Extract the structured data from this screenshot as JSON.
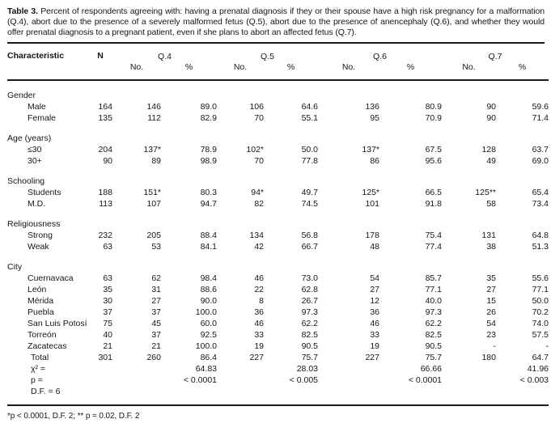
{
  "caption": {
    "label": "Table 3.",
    "text": " Percent of respondents agreeing with: having a prenatal diagnosis if they or their spouse have a high risk pregnancy for a malformation (Q.4), abort due to the presence of a severely malformed fetus (Q.5), abort due to the presence of anencephaly (Q.6), and whether they would offer prenatal diagnosis to a pregnant patient, even if she plans to abort an affected fetus (Q.7)."
  },
  "table": {
    "col_headers": {
      "characteristic": "Characteristic",
      "n": "N",
      "groups": [
        "Q.4",
        "Q.5",
        "Q.6",
        "Q.7"
      ],
      "sub": [
        "No.",
        "%"
      ]
    },
    "sections": [
      {
        "label": "Gender",
        "rows": [
          {
            "label": "Male",
            "values": [
              "164",
              "146",
              "89.0",
              "106",
              "64.6",
              "136",
              "80.9",
              "90",
              "59.6"
            ]
          },
          {
            "label": "Female",
            "values": [
              "135",
              "112",
              "82.9",
              "70",
              "55.1",
              "95",
              "70.9",
              "90",
              "71.4"
            ]
          }
        ]
      },
      {
        "label": "Age (years)",
        "rows": [
          {
            "label": "≤30",
            "values": [
              "204",
              "137*",
              "78.9",
              "102*",
              "50.0",
              "137*",
              "67.5",
              "128",
              "63.7"
            ]
          },
          {
            "label": "30+",
            "values": [
              "90",
              "89",
              "98.9",
              "70",
              "77.8",
              "86",
              "95.6",
              "49",
              "69.0"
            ]
          }
        ]
      },
      {
        "label": "Schooling",
        "rows": [
          {
            "label": "Students",
            "values": [
              "188",
              "151*",
              "80.3",
              "94*",
              "49.7",
              "125*",
              "66.5",
              "125**",
              "65.4"
            ]
          },
          {
            "label": "M.D.",
            "values": [
              "113",
              "107",
              "94.7",
              "82",
              "74.5",
              "101",
              "91.8",
              "58",
              "73.4"
            ]
          }
        ]
      },
      {
        "label": "Religiousness",
        "rows": [
          {
            "label": "Strong",
            "values": [
              "232",
              "205",
              "88.4",
              "134",
              "56.8",
              "178",
              "75.4",
              "131",
              "64.8"
            ]
          },
          {
            "label": "Weak",
            "values": [
              "63",
              "53",
              "84.1",
              "42",
              "66.7",
              "48",
              "77.4",
              "38",
              "51.3"
            ]
          }
        ]
      },
      {
        "label": "City",
        "rows": [
          {
            "label": "Cuernavaca",
            "values": [
              "63",
              "62",
              "98.4",
              "46",
              "73.0",
              "54",
              "85.7",
              "35",
              "55.6"
            ]
          },
          {
            "label": "León",
            "values": [
              "35",
              "31",
              "88.6",
              "22",
              "62.8",
              "27",
              "77.1",
              "27",
              "77.1"
            ]
          },
          {
            "label": "Mérida",
            "values": [
              "30",
              "27",
              "90.0",
              "8",
              "26.7",
              "12",
              "40.0",
              "15",
              "50.0"
            ]
          },
          {
            "label": "Puebla",
            "values": [
              "37",
              "37",
              "100.0",
              "36",
              "97.3",
              "36",
              "97.3",
              "26",
              "70.2"
            ]
          },
          {
            "label": "San Luis Potosí",
            "values": [
              "75",
              "45",
              "60.0",
              "46",
              "62.2",
              "46",
              "62.2",
              "54",
              "74.0"
            ]
          },
          {
            "label": "Torreón",
            "values": [
              "40",
              "37",
              "92.5",
              "33",
              "82.5",
              "33",
              "82.5",
              "23",
              "57.5"
            ]
          },
          {
            "label": "Zacatecas",
            "values": [
              "21",
              "21",
              "100.0",
              "19",
              "90.5",
              "19",
              "90.5",
              "-",
              "-"
            ]
          }
        ]
      }
    ],
    "total_row": {
      "label": "Total",
      "values": [
        "301",
        "260",
        "86.4",
        "227",
        "75.7",
        "227",
        "75.7",
        "180",
        "64.7"
      ]
    },
    "stats": {
      "chi_label": "χ² =",
      "chi_values": [
        "64.83",
        "28.03",
        "66.66",
        "41.96"
      ],
      "p_label": "p =",
      "p_values": [
        "< 0.0001",
        "< 0.005",
        "< 0.0001",
        "< 0.003"
      ],
      "df_label": "D.F. = 6"
    }
  },
  "footnote": "*p < 0.0001, D.F. 2; ** p = 0.02, D.F. 2"
}
